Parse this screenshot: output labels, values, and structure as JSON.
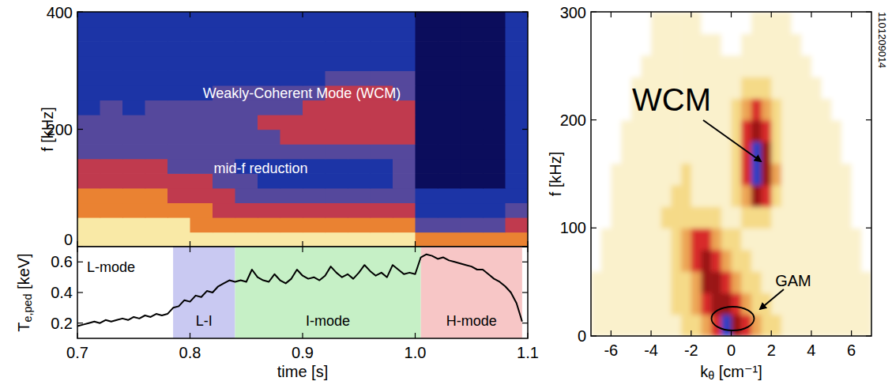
{
  "chart_data": [
    {
      "type": "heatmap",
      "y_label": "f [kHz]",
      "xlim": [
        0.7,
        1.1
      ],
      "xticks": [
        0.7,
        0.8,
        0.9,
        1.0,
        1.1
      ],
      "ylim": [
        0,
        400
      ],
      "yticks": [
        0,
        200,
        400
      ],
      "tick_labels": "y",
      "annotations": [
        "Weakly-Coherent Mode (WCM)",
        "mid-f reduction"
      ],
      "colors": [
        "#0b0d5c",
        "#1c34a6",
        "#55489c",
        "#c03a4e",
        "#ea8232",
        "#f9e9a6"
      ],
      "cells": [
        [
          5,
          5,
          5,
          5,
          5,
          5,
          5,
          5,
          5,
          5,
          5,
          5,
          5,
          5,
          5,
          4,
          4,
          4,
          4,
          4
        ],
        [
          5,
          5,
          5,
          5,
          5,
          4,
          4,
          4,
          4,
          4,
          4,
          4,
          4,
          4,
          4,
          2,
          2,
          2,
          2,
          3
        ],
        [
          4,
          4,
          4,
          4,
          4,
          4,
          3,
          3,
          3,
          3,
          3,
          3,
          3,
          3,
          3,
          1,
          1,
          1,
          1,
          2
        ],
        [
          4,
          4,
          4,
          4,
          3,
          3,
          3,
          2,
          2,
          2,
          2,
          2,
          2,
          2,
          2,
          1,
          1,
          1,
          1,
          1
        ],
        [
          3,
          3,
          3,
          3,
          3,
          3,
          2,
          2,
          1,
          1,
          1,
          1,
          1,
          1,
          2,
          0,
          0,
          0,
          0,
          1
        ],
        [
          3,
          3,
          3,
          3,
          2,
          2,
          2,
          1,
          1,
          1,
          1,
          1,
          1,
          1,
          2,
          0,
          0,
          0,
          0,
          1
        ],
        [
          2,
          2,
          2,
          2,
          2,
          2,
          2,
          2,
          2,
          2,
          2,
          2,
          2,
          2,
          2,
          0,
          0,
          0,
          0,
          1
        ],
        [
          2,
          2,
          2,
          2,
          2,
          2,
          2,
          2,
          2,
          3,
          3,
          3,
          3,
          3,
          3,
          0,
          0,
          0,
          0,
          1
        ],
        [
          2,
          2,
          2,
          2,
          2,
          2,
          2,
          2,
          3,
          3,
          3,
          3,
          3,
          3,
          3,
          0,
          0,
          0,
          0,
          1
        ],
        [
          1,
          2,
          1,
          2,
          2,
          2,
          2,
          2,
          2,
          2,
          3,
          3,
          3,
          3,
          3,
          0,
          0,
          0,
          0,
          1
        ],
        [
          1,
          1,
          1,
          1,
          1,
          1,
          2,
          2,
          2,
          2,
          2,
          3,
          3,
          3,
          2,
          0,
          0,
          0,
          0,
          1
        ],
        [
          1,
          1,
          1,
          1,
          1,
          1,
          1,
          1,
          1,
          1,
          1,
          2,
          2,
          2,
          2,
          0,
          0,
          0,
          0,
          1
        ],
        [
          1,
          1,
          1,
          1,
          1,
          1,
          1,
          1,
          1,
          1,
          1,
          1,
          1,
          1,
          1,
          0,
          0,
          0,
          0,
          1
        ],
        [
          1,
          1,
          1,
          1,
          1,
          1,
          1,
          1,
          1,
          1,
          1,
          1,
          1,
          1,
          1,
          0,
          0,
          0,
          0,
          1
        ],
        [
          1,
          1,
          1,
          1,
          1,
          1,
          1,
          1,
          1,
          1,
          1,
          1,
          1,
          1,
          1,
          0,
          0,
          0,
          0,
          1
        ],
        [
          1,
          1,
          1,
          1,
          1,
          1,
          1,
          1,
          1,
          1,
          1,
          1,
          1,
          1,
          1,
          0,
          0,
          0,
          0,
          1
        ]
      ]
    },
    {
      "type": "line",
      "x_label": "time [s]",
      "y_label": "Te,ped [keV]",
      "xlim": [
        0.7,
        1.1
      ],
      "xticks": [
        0.7,
        0.8,
        0.9,
        {
          "value": 1.0,
          "label": "1.0"
        },
        1.1
      ],
      "ylim": [
        0.1,
        0.7
      ],
      "yticks": [
        0.2,
        0.4,
        0.6
      ],
      "regions": [
        {
          "label": "L-mode",
          "start": 0.7,
          "end": 0.785,
          "color": "#ffffff"
        },
        {
          "label": "L-I",
          "start": 0.785,
          "end": 0.84,
          "color": "#c9c9f2"
        },
        {
          "label": "I-mode",
          "start": 0.84,
          "end": 1.005,
          "color": "#c6f0c6"
        },
        {
          "label": "H-mode",
          "start": 1.005,
          "end": 1.095,
          "color": "#f7c6c6"
        }
      ],
      "x": [
        0.7,
        0.705,
        0.71,
        0.715,
        0.72,
        0.725,
        0.73,
        0.735,
        0.74,
        0.745,
        0.75,
        0.755,
        0.76,
        0.765,
        0.77,
        0.775,
        0.78,
        0.785,
        0.79,
        0.795,
        0.8,
        0.805,
        0.81,
        0.815,
        0.82,
        0.825,
        0.83,
        0.835,
        0.84,
        0.845,
        0.85,
        0.855,
        0.86,
        0.865,
        0.87,
        0.875,
        0.88,
        0.885,
        0.89,
        0.895,
        0.9,
        0.905,
        0.91,
        0.915,
        0.92,
        0.925,
        0.93,
        0.935,
        0.94,
        0.945,
        0.95,
        0.955,
        0.96,
        0.965,
        0.97,
        0.975,
        0.98,
        0.985,
        0.99,
        0.995,
        1.0,
        1.005,
        1.01,
        1.015,
        1.02,
        1.025,
        1.03,
        1.035,
        1.04,
        1.045,
        1.05,
        1.055,
        1.06,
        1.065,
        1.07,
        1.075,
        1.08,
        1.085,
        1.09,
        1.095
      ],
      "series": [
        {
          "color": "#000000",
          "values": [
            0.18,
            0.19,
            0.2,
            0.21,
            0.2,
            0.22,
            0.21,
            0.22,
            0.23,
            0.22,
            0.24,
            0.23,
            0.25,
            0.24,
            0.26,
            0.25,
            0.26,
            0.3,
            0.31,
            0.35,
            0.34,
            0.38,
            0.37,
            0.41,
            0.4,
            0.44,
            0.46,
            0.48,
            0.47,
            0.48,
            0.47,
            0.55,
            0.5,
            0.48,
            0.47,
            0.52,
            0.48,
            0.46,
            0.49,
            0.55,
            0.51,
            0.49,
            0.5,
            0.48,
            0.51,
            0.57,
            0.53,
            0.5,
            0.52,
            0.49,
            0.53,
            0.58,
            0.54,
            0.51,
            0.53,
            0.5,
            0.58,
            0.55,
            0.52,
            0.53,
            0.52,
            0.63,
            0.65,
            0.64,
            0.62,
            0.63,
            0.61,
            0.6,
            0.59,
            0.58,
            0.57,
            0.55,
            0.55,
            0.52,
            0.49,
            0.47,
            0.44,
            0.4,
            0.33,
            0.21
          ]
        }
      ]
    },
    {
      "type": "contour",
      "x_label": "kθ [cm⁻¹]",
      "y_label": "f [kHz]",
      "xlim": [
        -7,
        7
      ],
      "xticks": [
        -6,
        -4,
        -2,
        0,
        2,
        4,
        6
      ],
      "ylim": [
        0,
        300
      ],
      "yticks": [
        0,
        100,
        200,
        300
      ],
      "annotations": [
        "WCM",
        "GAM",
        "1101209014"
      ],
      "colors": [
        "#ffffff",
        "#faf1cc",
        "#f5da88",
        "#eca455",
        "#d8292b",
        "#9a1515",
        "#2b3fc4"
      ],
      "cells": [
        [
          1,
          1,
          1,
          1,
          1,
          1,
          1,
          1,
          1,
          2,
          2,
          3,
          4,
          6,
          5,
          4,
          3,
          2,
          2,
          1,
          1,
          1,
          1,
          1,
          1,
          1,
          1,
          1
        ],
        [
          1,
          1,
          1,
          1,
          1,
          1,
          1,
          1,
          2,
          2,
          3,
          4,
          5,
          5,
          4,
          3,
          2,
          2,
          1,
          1,
          1,
          1,
          1,
          1,
          1,
          1,
          1,
          1
        ],
        [
          1,
          1,
          1,
          1,
          1,
          1,
          1,
          1,
          2,
          2,
          3,
          5,
          5,
          4,
          3,
          2,
          2,
          1,
          1,
          1,
          1,
          1,
          1,
          1,
          1,
          1,
          1,
          1
        ],
        [
          0,
          1,
          1,
          1,
          1,
          1,
          1,
          1,
          2,
          3,
          4,
          5,
          4,
          3,
          2,
          2,
          1,
          1,
          1,
          1,
          1,
          1,
          1,
          1,
          1,
          1,
          1,
          0
        ],
        [
          0,
          1,
          1,
          1,
          1,
          1,
          1,
          1,
          2,
          3,
          4,
          4,
          3,
          2,
          2,
          1,
          1,
          1,
          1,
          1,
          1,
          1,
          1,
          1,
          1,
          1,
          1,
          0
        ],
        [
          0,
          0,
          1,
          1,
          1,
          1,
          1,
          2,
          2,
          2,
          2,
          2,
          2,
          1,
          1,
          2,
          2,
          2,
          1,
          1,
          1,
          1,
          1,
          1,
          1,
          1,
          0,
          0
        ],
        [
          0,
          0,
          1,
          1,
          1,
          1,
          1,
          1,
          2,
          2,
          1,
          1,
          1,
          1,
          2,
          3,
          5,
          4,
          2,
          1,
          1,
          1,
          1,
          1,
          1,
          1,
          0,
          0
        ],
        [
          0,
          0,
          1,
          1,
          1,
          1,
          1,
          1,
          1,
          2,
          1,
          1,
          1,
          1,
          2,
          4,
          6,
          5,
          3,
          1,
          1,
          1,
          1,
          1,
          1,
          1,
          0,
          0
        ],
        [
          0,
          0,
          0,
          1,
          1,
          1,
          1,
          1,
          1,
          1,
          1,
          1,
          1,
          1,
          2,
          4,
          6,
          5,
          2,
          1,
          1,
          1,
          1,
          1,
          1,
          0,
          0,
          0
        ],
        [
          0,
          0,
          0,
          1,
          1,
          1,
          1,
          1,
          1,
          1,
          1,
          1,
          1,
          1,
          2,
          4,
          5,
          4,
          2,
          1,
          1,
          1,
          1,
          1,
          1,
          0,
          0,
          0
        ],
        [
          0,
          0,
          0,
          0,
          1,
          1,
          1,
          1,
          1,
          1,
          1,
          1,
          1,
          1,
          2,
          3,
          4,
          3,
          2,
          1,
          1,
          1,
          1,
          1,
          0,
          0,
          0,
          0
        ],
        [
          0,
          0,
          0,
          0,
          1,
          1,
          1,
          1,
          1,
          1,
          1,
          1,
          1,
          1,
          1,
          2,
          2,
          2,
          1,
          1,
          1,
          1,
          1,
          0,
          0,
          0,
          0,
          0
        ],
        [
          0,
          0,
          0,
          0,
          0,
          1,
          1,
          1,
          1,
          1,
          1,
          1,
          1,
          1,
          1,
          1,
          1,
          1,
          1,
          1,
          1,
          1,
          0,
          0,
          0,
          0,
          0,
          0
        ],
        [
          0,
          0,
          0,
          0,
          0,
          0,
          1,
          1,
          1,
          1,
          1,
          1,
          1,
          0,
          0,
          1,
          1,
          1,
          1,
          1,
          1,
          0,
          0,
          0,
          0,
          0,
          0,
          0
        ],
        [
          0,
          0,
          0,
          0,
          0,
          0,
          1,
          1,
          1,
          1,
          1,
          0,
          0,
          0,
          0,
          0,
          1,
          1,
          1,
          1,
          0,
          0,
          0,
          0,
          0,
          0,
          0,
          0
        ]
      ]
    }
  ]
}
